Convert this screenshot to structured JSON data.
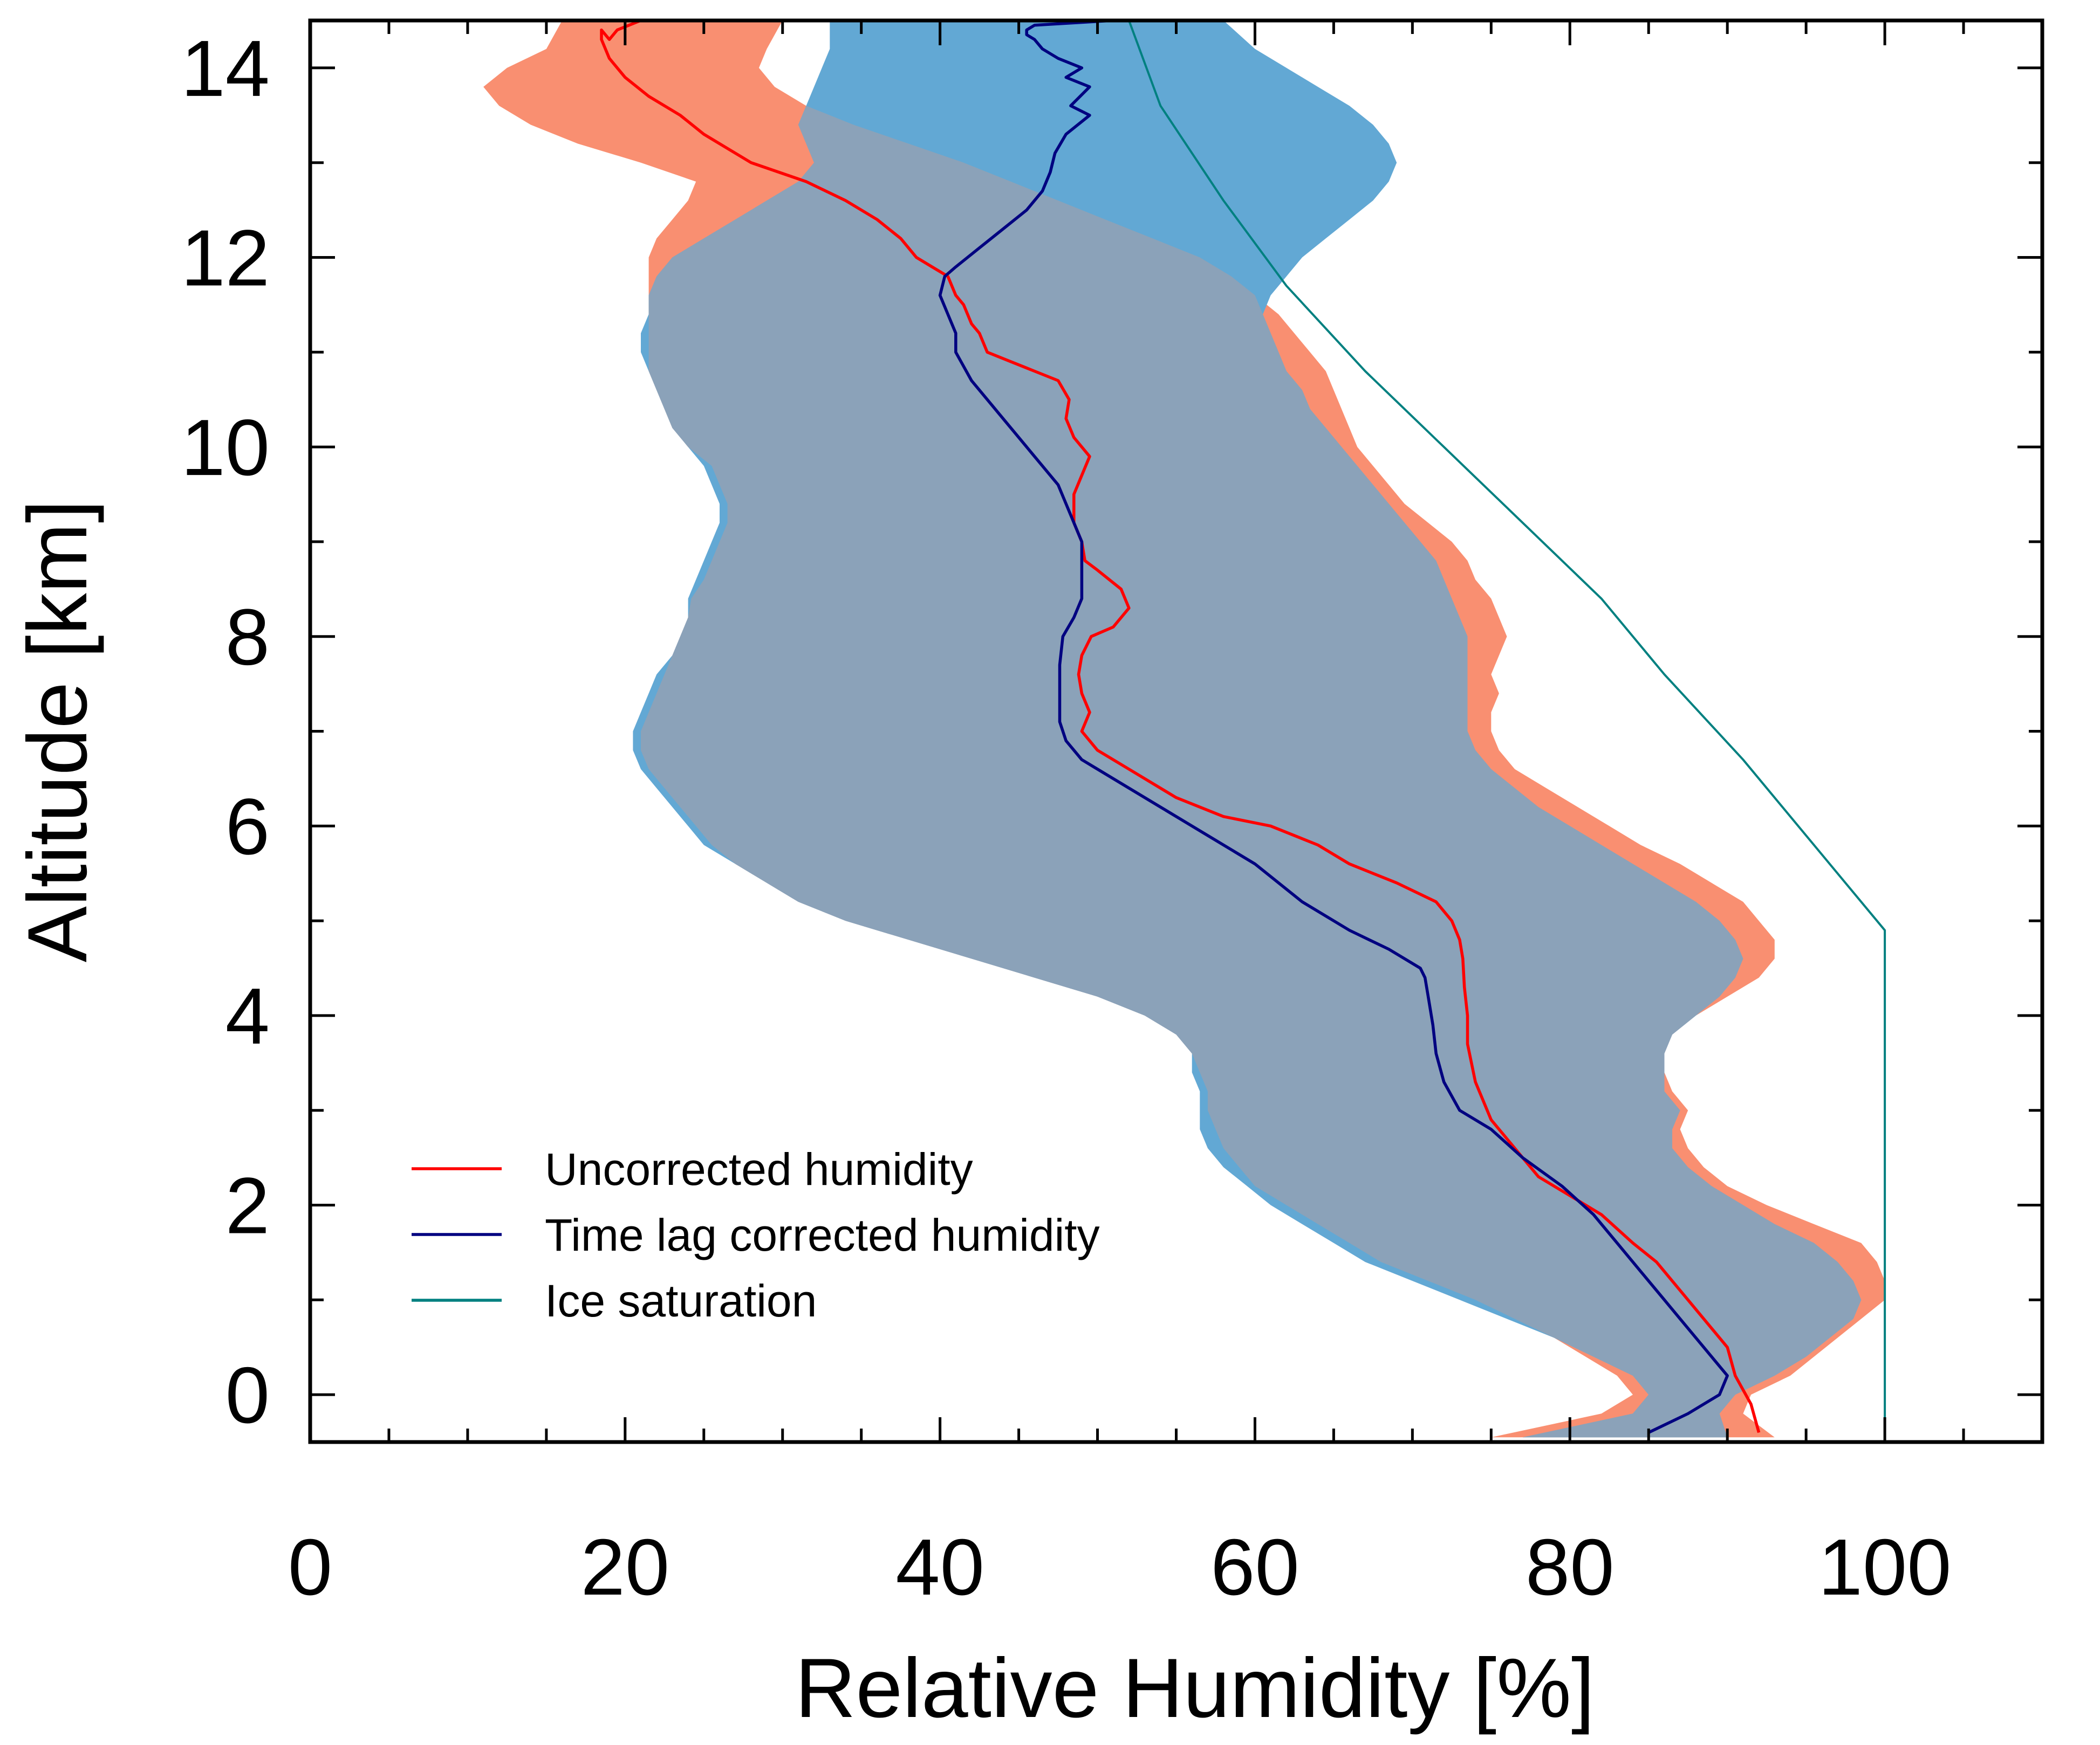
{
  "chart_data": {
    "type": "line",
    "title": "",
    "xlabel": "Relative Humidity [%]",
    "ylabel": "Altitude [km]",
    "xlim": [
      0,
      110
    ],
    "ylim": [
      -0.5,
      14.5
    ],
    "xticks": [
      "0",
      "20",
      "40",
      "60",
      "80",
      "100"
    ],
    "xtick_values": [
      0,
      20,
      40,
      60,
      80,
      100
    ],
    "yticks": [
      "0",
      "2",
      "4",
      "6",
      "8",
      "10",
      "12",
      "14"
    ],
    "ytick_values": [
      0,
      2,
      4,
      6,
      8,
      10,
      12,
      14
    ],
    "grid": false,
    "legend_position": "bottom-left",
    "legend": [
      {
        "label": "Uncorrected humidity",
        "color": "#ff0000"
      },
      {
        "label": "Time lag corrected humidity",
        "color": "#000080"
      },
      {
        "label": "Ice saturation",
        "color": "#008080"
      }
    ],
    "series": [
      {
        "name": "Uncorrected humidity",
        "color": "#ff0000",
        "x": [
          92,
          91.5,
          90.5,
          90,
          88.5,
          87,
          85.5,
          84,
          82,
          80,
          78,
          76.5,
          75,
          74,
          73.5,
          73.5,
          73.3,
          73.2,
          73,
          72.5,
          71.5,
          69,
          66,
          64,
          61,
          58,
          55,
          52,
          50,
          49,
          49.5,
          49,
          48.8,
          49,
          49.6,
          51,
          52,
          51.5,
          50,
          49.2,
          49,
          48.5,
          48.5,
          49,
          49.5,
          48.5,
          48,
          48.2,
          47.5,
          46,
          44.5,
          43,
          42.5,
          42,
          41.5,
          41,
          40.5,
          39.5,
          38.5,
          37.5,
          36,
          34,
          31.5,
          28,
          25,
          23.5,
          21.5,
          20,
          19,
          18.5,
          18.5,
          19,
          19.5,
          21
        ],
        "y": [
          -0.4,
          -0.1,
          0.2,
          0.5,
          0.8,
          1.1,
          1.4,
          1.6,
          1.9,
          2.1,
          2.3,
          2.6,
          2.9,
          3.3,
          3.7,
          4.0,
          4.3,
          4.6,
          4.8,
          5.0,
          5.2,
          5.4,
          5.6,
          5.8,
          6.0,
          6.1,
          6.3,
          6.6,
          6.8,
          7.0,
          7.2,
          7.4,
          7.6,
          7.8,
          8.0,
          8.1,
          8.3,
          8.5,
          8.7,
          8.8,
          9.0,
          9.2,
          9.5,
          9.7,
          9.9,
          10.1,
          10.3,
          10.5,
          10.7,
          10.8,
          10.9,
          11.0,
          11.2,
          11.3,
          11.5,
          11.6,
          11.8,
          11.9,
          12.0,
          12.2,
          12.4,
          12.6,
          12.8,
          13.0,
          13.3,
          13.5,
          13.7,
          13.9,
          14.1,
          14.3,
          14.4,
          14.3,
          14.4,
          14.5
        ]
      },
      {
        "name": "Time lag corrected humidity",
        "color": "#000080",
        "x": [
          85,
          87.5,
          89.5,
          90,
          89,
          88,
          87,
          86,
          84.5,
          83,
          81.5,
          79.5,
          77,
          75,
          73,
          72,
          71.5,
          71.3,
          71,
          70.8,
          70.5,
          68.5,
          66,
          63,
          60,
          57,
          54,
          51,
          49,
          48,
          47.6,
          47.6,
          47.6,
          47.8,
          48.5,
          49,
          49,
          49,
          49,
          48.5,
          48,
          47.5,
          46.5,
          45,
          43.5,
          42,
          41,
          41,
          40.5,
          40,
          40.3,
          41,
          42.5,
          44,
          45.5,
          46.5,
          47,
          47.3,
          48,
          49.5,
          48.3,
          49.5,
          48,
          49,
          47.5,
          46.5,
          46,
          45.5,
          45.5,
          46,
          51
        ],
        "y": [
          -0.4,
          -0.2,
          0.0,
          0.2,
          0.4,
          0.6,
          0.8,
          1.0,
          1.3,
          1.6,
          1.9,
          2.2,
          2.5,
          2.8,
          3.0,
          3.3,
          3.6,
          3.9,
          4.2,
          4.4,
          4.5,
          4.7,
          4.9,
          5.2,
          5.6,
          5.9,
          6.2,
          6.5,
          6.7,
          6.9,
          7.1,
          7.4,
          7.7,
          8.0,
          8.2,
          8.4,
          8.6,
          8.8,
          9.0,
          9.2,
          9.4,
          9.6,
          9.8,
          10.1,
          10.4,
          10.7,
          11.0,
          11.2,
          11.4,
          11.6,
          11.8,
          11.9,
          12.1,
          12.3,
          12.5,
          12.7,
          12.9,
          13.1,
          13.3,
          13.5,
          13.6,
          13.8,
          13.9,
          14.0,
          14.1,
          14.2,
          14.3,
          14.35,
          14.4,
          14.45,
          14.5
        ]
      },
      {
        "name": "Ice saturation",
        "color": "#008080",
        "x": [
          100,
          100,
          100,
          96,
          91,
          86,
          82,
          77,
          72,
          67,
          62,
          58,
          54,
          52
        ],
        "y": [
          -0.5,
          2.0,
          4.9,
          5.7,
          6.7,
          7.6,
          8.4,
          9.2,
          10.0,
          10.8,
          11.7,
          12.6,
          13.6,
          14.5
        ]
      }
    ],
    "bands": [
      {
        "name": "",
        "color": "#f98f71",
        "y": [
          -0.45,
          -0.2,
          0.0,
          0.2,
          0.4,
          0.6,
          0.8,
          1.0,
          1.2,
          1.4,
          1.6,
          1.8,
          2.0,
          2.2,
          2.4,
          2.6,
          2.8,
          3.0,
          3.2,
          3.4,
          3.6,
          3.8,
          4.0,
          4.2,
          4.4,
          4.6,
          4.8,
          5.0,
          5.2,
          5.4,
          5.6,
          5.8,
          6.0,
          6.2,
          6.4,
          6.6,
          6.8,
          7.0,
          7.2,
          7.4,
          7.6,
          7.8,
          8.0,
          8.2,
          8.4,
          8.6,
          8.8,
          9.0,
          9.2,
          9.4,
          9.6,
          9.8,
          10.0,
          10.2,
          10.4,
          10.6,
          10.8,
          11.0,
          11.2,
          11.4,
          11.6,
          11.8,
          12.0,
          12.2,
          12.4,
          12.6,
          12.8,
          13.0,
          13.2,
          13.4,
          13.6,
          13.8,
          14.0,
          14.2,
          14.5
        ],
        "x_low": [
          75,
          82,
          84,
          83,
          81,
          79,
          76.5,
          74,
          71,
          68,
          66,
          64,
          62,
          60,
          59,
          58,
          57.5,
          57,
          57,
          56.5,
          56,
          55,
          53,
          50,
          46,
          42,
          38,
          34,
          31,
          29,
          27,
          25.5,
          24.5,
          23.5,
          22.5,
          21.5,
          21,
          21,
          21.5,
          22,
          22.5,
          23,
          23.5,
          24,
          24.2,
          25,
          25.5,
          26,
          26.5,
          26.5,
          26,
          25.5,
          24,
          23,
          22.5,
          22,
          21.5,
          21.5,
          21.5,
          21.5,
          21.5,
          21.5,
          21.5,
          22,
          23,
          24,
          24.5,
          21,
          17,
          14,
          12,
          11,
          12.5,
          15,
          16
        ],
        "x_high": [
          93,
          91,
          91.5,
          94,
          95.5,
          97,
          98.5,
          100,
          100,
          99.5,
          98.5,
          95.5,
          92.5,
          90,
          88.5,
          87.5,
          87,
          87.5,
          86.5,
          86,
          86,
          86.5,
          88,
          90,
          92,
          93,
          93,
          92,
          91,
          89,
          87,
          84.5,
          82.5,
          80.5,
          78.5,
          76.5,
          75.5,
          75,
          75,
          75.5,
          75,
          75.5,
          76,
          75.5,
          75,
          74,
          73.5,
          72.5,
          71,
          69.5,
          68.5,
          67.5,
          66.5,
          66,
          65.5,
          65,
          64.5,
          63.5,
          62.5,
          61.5,
          60,
          58.5,
          56.5,
          53.5,
          50.5,
          47.5,
          44.5,
          41.5,
          38,
          34.5,
          31.5,
          29.5,
          28.5,
          29,
          30
        ]
      },
      {
        "name": "",
        "color": "#62a8d4",
        "y": [
          -0.45,
          -0.2,
          0.0,
          0.2,
          0.4,
          0.6,
          0.8,
          1.0,
          1.2,
          1.4,
          1.6,
          1.8,
          2.0,
          2.2,
          2.4,
          2.6,
          2.8,
          3.0,
          3.2,
          3.4,
          3.6,
          3.8,
          4.0,
          4.2,
          4.4,
          4.6,
          4.8,
          5.0,
          5.2,
          5.4,
          5.6,
          5.8,
          6.0,
          6.2,
          6.4,
          6.6,
          6.8,
          7.0,
          7.2,
          7.4,
          7.6,
          7.8,
          8.0,
          8.2,
          8.4,
          8.6,
          8.8,
          9.0,
          9.2,
          9.4,
          9.6,
          9.8,
          10.0,
          10.2,
          10.4,
          10.6,
          10.8,
          11.0,
          11.2,
          11.4,
          11.6,
          11.8,
          12.0,
          12.2,
          12.4,
          12.6,
          12.8,
          13.0,
          13.2,
          13.4,
          13.6,
          13.8,
          14.0,
          14.2,
          14.5
        ],
        "x_low": [
          77,
          84,
          85,
          84,
          81.5,
          79,
          76,
          73,
          70,
          67,
          65,
          63,
          61,
          59.5,
          58,
          57,
          56.5,
          56.5,
          56.5,
          56,
          56,
          55,
          53,
          50,
          46,
          42,
          38,
          34,
          31,
          29,
          27,
          25,
          24,
          23,
          22,
          21,
          20.5,
          20.5,
          21,
          21.5,
          22,
          23,
          23.5,
          24,
          24,
          24.5,
          25,
          25.5,
          26,
          26,
          25.5,
          25,
          24,
          23,
          22.5,
          22,
          21.5,
          21,
          21,
          21.5,
          21.5,
          22,
          23,
          25,
          27,
          29,
          31,
          32,
          31.5,
          31,
          31.5,
          32,
          32.5,
          33,
          33
        ],
        "x_high": [
          90,
          89.5,
          90.5,
          93,
          95,
          96.5,
          98,
          98.5,
          98,
          97,
          95.5,
          93,
          91,
          89,
          87.5,
          86.5,
          86.5,
          87,
          86,
          86,
          86,
          86.5,
          88,
          89.5,
          90.5,
          91,
          90.5,
          89.5,
          88,
          86,
          84,
          82,
          80,
          78,
          76.5,
          75,
          74,
          73.5,
          73.5,
          73.5,
          73.5,
          73.5,
          73.5,
          73,
          72.5,
          72,
          71.5,
          70.5,
          69.5,
          68.5,
          67.5,
          66.5,
          65.5,
          64.5,
          63.5,
          63,
          62,
          61.5,
          61,
          60.5,
          61,
          62,
          63,
          64.5,
          66,
          67.5,
          68.5,
          69,
          68.5,
          67.5,
          66,
          64,
          62,
          60,
          58
        ]
      },
      {
        "name": "",
        "color": "#8ba2b9",
        "y": [
          -0.45,
          -0.2,
          0.0,
          0.2,
          0.4,
          0.6,
          0.8,
          1.0,
          1.2,
          1.4,
          1.6,
          1.8,
          2.0,
          2.2,
          2.4,
          2.6,
          2.8,
          3.0,
          3.2,
          3.4,
          3.6,
          3.8,
          4.0,
          4.2,
          4.4,
          4.6,
          4.8,
          5.0,
          5.2,
          5.4,
          5.6,
          5.8,
          6.0,
          6.2,
          6.4,
          6.6,
          6.8,
          7.0,
          7.2,
          7.4,
          7.6,
          7.8,
          8.0,
          8.2,
          8.4,
          8.6,
          8.8,
          9.0,
          9.2,
          9.4,
          9.6,
          9.8,
          10.0,
          10.2,
          10.4,
          10.6,
          10.8,
          11.0,
          11.2,
          11.4,
          11.6,
          11.8,
          12.0,
          12.2,
          12.4,
          12.6,
          12.8,
          13.0,
          13.2,
          13.4,
          13.6
        ],
        "x_low": [
          77,
          84,
          85,
          84,
          81.5,
          79,
          76.5,
          74,
          71,
          68,
          66,
          64,
          62,
          60,
          59,
          58,
          57.5,
          57,
          57,
          56.5,
          56,
          55,
          53,
          50,
          46,
          42,
          38,
          34,
          31,
          29,
          27,
          25.5,
          24.5,
          23.5,
          22.5,
          21.5,
          21,
          21,
          21.5,
          22,
          22.5,
          23,
          23.5,
          24,
          24.2,
          25,
          25.5,
          26,
          26.5,
          26.5,
          26,
          25.5,
          24,
          23,
          22.5,
          22,
          21.5,
          21.5,
          21.5,
          21.5,
          21.5,
          22,
          23,
          25,
          27,
          29,
          31,
          32,
          31.5,
          31,
          31.5
        ],
        "x_high": [
          90,
          89.5,
          90.5,
          93,
          95,
          96.5,
          98,
          98.5,
          98,
          97,
          95.5,
          93,
          91,
          89,
          87.5,
          86.5,
          86.5,
          87,
          86,
          86,
          86,
          86.5,
          88,
          89.5,
          90.5,
          91,
          90.5,
          89.5,
          88,
          86,
          84,
          82,
          80,
          78,
          76.5,
          75,
          74,
          73.5,
          73.5,
          73.5,
          73.5,
          73.5,
          73.5,
          73,
          72.5,
          72,
          71.5,
          70.5,
          69.5,
          68.5,
          67.5,
          66.5,
          65.5,
          64.5,
          63.5,
          63,
          62,
          61.5,
          61,
          60.5,
          60,
          58.5,
          56.5,
          53.5,
          50.5,
          47.5,
          44.5,
          41.5,
          38,
          34.5,
          31.5
        ]
      }
    ]
  }
}
